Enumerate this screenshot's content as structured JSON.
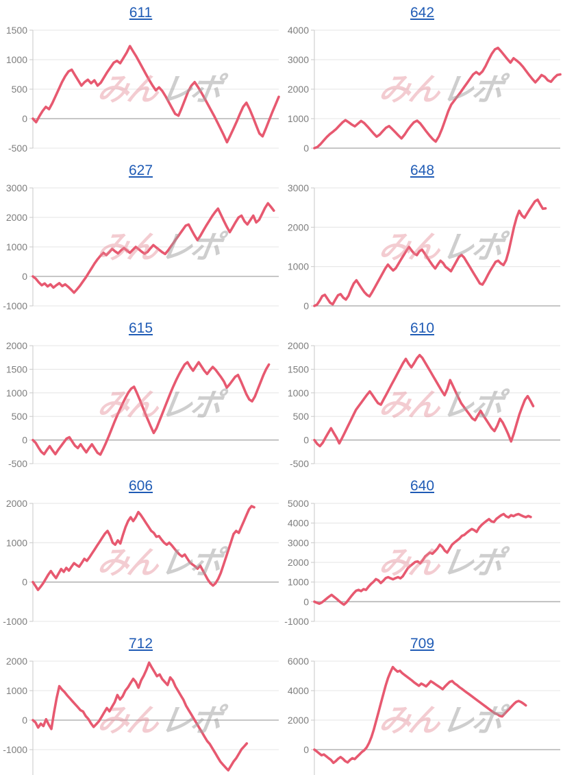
{
  "watermark": {
    "left": "みん",
    "right": "レポ"
  },
  "colors": {
    "line": "#e75970",
    "title_link": "#1f5bb5",
    "grid": "#e6e6e6",
    "zero_line": "#b3b3b3",
    "axis": "#cccccc",
    "tick_label": "#7d7d7d",
    "watermark_pink": "#e48894",
    "watermark_gray": "#9e9e9e",
    "background": "#ffffff"
  },
  "chart_data": [
    {
      "type": "line",
      "title": "611",
      "ylim": [
        -500,
        1500
      ],
      "yticks": [
        1500,
        1000,
        500,
        0,
        -500
      ],
      "x_extent": 1.0,
      "values": [
        0,
        -60,
        40,
        130,
        200,
        160,
        260,
        380,
        500,
        620,
        720,
        800,
        830,
        740,
        650,
        560,
        620,
        660,
        600,
        650,
        560,
        610,
        700,
        790,
        870,
        950,
        980,
        940,
        1030,
        1120,
        1230,
        1140,
        1050,
        950,
        850,
        750,
        650,
        560,
        480,
        530,
        470,
        380,
        280,
        180,
        80,
        50,
        180,
        320,
        460,
        560,
        620,
        540,
        450,
        350,
        250,
        150,
        50,
        -60,
        -170,
        -280,
        -400,
        -290,
        -170,
        -50,
        80,
        200,
        270,
        160,
        30,
        -110,
        -250,
        -300,
        -170,
        -30,
        110,
        240,
        370
      ]
    },
    {
      "type": "line",
      "title": "642",
      "ylim": [
        0,
        4000
      ],
      "yticks": [
        4000,
        3000,
        2000,
        1000,
        0
      ],
      "x_extent": 1.0,
      "values": [
        0,
        40,
        140,
        260,
        380,
        480,
        560,
        650,
        760,
        870,
        950,
        880,
        800,
        740,
        830,
        920,
        850,
        740,
        620,
        500,
        390,
        460,
        580,
        690,
        750,
        650,
        540,
        430,
        330,
        460,
        620,
        760,
        880,
        930,
        840,
        700,
        560,
        430,
        310,
        220,
        400,
        650,
        950,
        1250,
        1480,
        1620,
        1760,
        1900,
        2050,
        2200,
        2350,
        2500,
        2580,
        2500,
        2600,
        2780,
        3000,
        3200,
        3350,
        3400,
        3280,
        3150,
        3020,
        2900,
        3050,
        2970,
        2880,
        2760,
        2620,
        2480,
        2350,
        2230,
        2350,
        2480,
        2420,
        2300,
        2250,
        2380,
        2480,
        2500
      ]
    },
    {
      "type": "line",
      "title": "627",
      "ylim": [
        -1000,
        3000
      ],
      "yticks": [
        3000,
        2000,
        1000,
        0,
        -1000
      ],
      "x_extent": 0.98,
      "values": [
        0,
        -80,
        -200,
        -300,
        -240,
        -340,
        -270,
        -380,
        -300,
        -230,
        -330,
        -270,
        -350,
        -450,
        -550,
        -440,
        -320,
        -180,
        -40,
        120,
        280,
        440,
        580,
        700,
        800,
        720,
        820,
        930,
        850,
        780,
        880,
        960,
        880,
        800,
        900,
        1000,
        920,
        840,
        770,
        830,
        950,
        1060,
        980,
        900,
        820,
        760,
        880,
        1020,
        1160,
        1300,
        1440,
        1580,
        1720,
        1760,
        1570,
        1390,
        1230,
        1380,
        1550,
        1720,
        1880,
        2040,
        2180,
        2300,
        2090,
        1880,
        1680,
        1500,
        1670,
        1840,
        2000,
        2060,
        1870,
        1760,
        1910,
        2060,
        1830,
        1920,
        2120,
        2320,
        2480,
        2360,
        2230
      ]
    },
    {
      "type": "line",
      "title": "648",
      "ylim": [
        0,
        3000
      ],
      "yticks": [
        3000,
        2000,
        1000,
        0
      ],
      "x_extent": 0.94,
      "values": [
        0,
        30,
        130,
        250,
        280,
        180,
        80,
        40,
        160,
        270,
        300,
        210,
        160,
        260,
        430,
        570,
        650,
        550,
        450,
        350,
        280,
        240,
        350,
        470,
        590,
        710,
        830,
        950,
        1050,
        970,
        900,
        960,
        1070,
        1180,
        1290,
        1400,
        1500,
        1410,
        1330,
        1290,
        1390,
        1430,
        1330,
        1230,
        1130,
        1030,
        950,
        1050,
        1150,
        1090,
        990,
        940,
        880,
        1000,
        1120,
        1240,
        1300,
        1230,
        1120,
        1010,
        900,
        790,
        680,
        570,
        540,
        650,
        780,
        900,
        1010,
        1120,
        1150,
        1080,
        1040,
        1160,
        1400,
        1700,
        2000,
        2250,
        2420,
        2300,
        2240,
        2350,
        2460,
        2560,
        2660,
        2700,
        2580,
        2470,
        2480
      ]
    },
    {
      "type": "line",
      "title": "615",
      "ylim": [
        -500,
        2000
      ],
      "yticks": [
        2000,
        1500,
        1000,
        500,
        0,
        -500
      ],
      "x_extent": 0.96,
      "values": [
        0,
        -60,
        -160,
        -250,
        -300,
        -210,
        -130,
        -220,
        -300,
        -210,
        -130,
        -50,
        30,
        60,
        -30,
        -120,
        -170,
        -90,
        -180,
        -260,
        -170,
        -90,
        -180,
        -270,
        -310,
        -190,
        -60,
        80,
        230,
        380,
        520,
        650,
        780,
        900,
        1010,
        1090,
        1130,
        1000,
        860,
        710,
        560,
        420,
        280,
        150,
        250,
        400,
        550,
        700,
        850,
        1000,
        1140,
        1270,
        1390,
        1500,
        1600,
        1650,
        1550,
        1470,
        1560,
        1650,
        1560,
        1470,
        1400,
        1480,
        1550,
        1490,
        1410,
        1330,
        1240,
        1110,
        1180,
        1260,
        1340,
        1380,
        1250,
        1110,
        970,
        860,
        820,
        920,
        1070,
        1220,
        1370,
        1500,
        1600
      ]
    },
    {
      "type": "line",
      "title": "610",
      "ylim": [
        -500,
        2000
      ],
      "yticks": [
        2000,
        1500,
        1000,
        500,
        0,
        -500
      ],
      "x_extent": 0.89,
      "values": [
        0,
        -80,
        -130,
        -60,
        50,
        150,
        250,
        150,
        50,
        -70,
        40,
        160,
        280,
        400,
        520,
        640,
        720,
        800,
        880,
        960,
        1030,
        950,
        860,
        780,
        750,
        860,
        970,
        1080,
        1190,
        1300,
        1410,
        1520,
        1630,
        1720,
        1620,
        1540,
        1630,
        1730,
        1800,
        1740,
        1640,
        1540,
        1440,
        1340,
        1240,
        1140,
        1040,
        950,
        1080,
        1270,
        1150,
        1020,
        900,
        780,
        700,
        620,
        540,
        460,
        420,
        520,
        620,
        520,
        430,
        340,
        250,
        190,
        300,
        450,
        370,
        250,
        120,
        -30,
        140,
        340,
        540,
        700,
        850,
        930,
        830,
        720
      ]
    },
    {
      "type": "line",
      "title": "606",
      "ylim": [
        -1000,
        2000
      ],
      "yticks": [
        2000,
        1000,
        0,
        -1000
      ],
      "x_extent": 0.9,
      "values": [
        0,
        -100,
        -200,
        -120,
        -30,
        80,
        190,
        280,
        180,
        100,
        220,
        330,
        260,
        360,
        290,
        390,
        480,
        430,
        390,
        490,
        590,
        540,
        630,
        730,
        830,
        930,
        1030,
        1130,
        1230,
        1300,
        1180,
        1000,
        950,
        1060,
        980,
        1200,
        1400,
        1550,
        1650,
        1550,
        1650,
        1780,
        1700,
        1600,
        1500,
        1400,
        1300,
        1250,
        1150,
        1170,
        1080,
        1000,
        950,
        1000,
        930,
        850,
        770,
        700,
        650,
        700,
        600,
        500,
        450,
        400,
        340,
        420,
        300,
        180,
        60,
        -30,
        -90,
        -30,
        80,
        230,
        420,
        620,
        820,
        1020,
        1220,
        1300,
        1250,
        1400,
        1550,
        1700,
        1850,
        1930,
        1900
      ]
    },
    {
      "type": "line",
      "title": "640",
      "ylim": [
        -1000,
        5000
      ],
      "yticks": [
        5000,
        4000,
        3000,
        2000,
        1000,
        0,
        -1000
      ],
      "x_extent": 0.88,
      "values": [
        0,
        -50,
        -100,
        -40,
        60,
        160,
        260,
        350,
        250,
        150,
        40,
        -60,
        -150,
        -40,
        120,
        280,
        430,
        560,
        600,
        540,
        640,
        600,
        760,
        900,
        1010,
        1150,
        1090,
        950,
        1060,
        1200,
        1250,
        1190,
        1140,
        1200,
        1250,
        1190,
        1300,
        1500,
        1700,
        1820,
        1920,
        2020,
        2050,
        1950,
        2100,
        2300,
        2400,
        2500,
        2440,
        2560,
        2700,
        2900,
        2790,
        2600,
        2500,
        2700,
        2900,
        3010,
        3110,
        3210,
        3350,
        3400,
        3510,
        3610,
        3700,
        3640,
        3550,
        3760,
        3900,
        4010,
        4110,
        4200,
        4090,
        4050,
        4210,
        4310,
        4400,
        4460,
        4340,
        4290,
        4400,
        4350,
        4420,
        4460,
        4400,
        4340,
        4300,
        4360,
        4310
      ]
    },
    {
      "type": "line",
      "title": "712",
      "ylim": [
        -2000,
        2000
      ],
      "yticks": [
        2000,
        1000,
        0,
        -1000,
        -2000
      ],
      "x_extent": 0.87,
      "values": [
        0,
        -80,
        -250,
        -120,
        -200,
        30,
        -150,
        -300,
        250,
        750,
        1150,
        1040,
        950,
        840,
        740,
        640,
        540,
        440,
        340,
        290,
        140,
        40,
        -110,
        -230,
        -140,
        -40,
        110,
        260,
        410,
        300,
        460,
        610,
        850,
        700,
        810,
        1000,
        1110,
        1260,
        1400,
        1290,
        1100,
        1350,
        1510,
        1710,
        1950,
        1790,
        1640,
        1490,
        1550,
        1390,
        1290,
        1190,
        1450,
        1340,
        1140,
        990,
        840,
        690,
        490,
        340,
        190,
        40,
        -110,
        -260,
        -410,
        -560,
        -710,
        -810,
        -960,
        -1110,
        -1260,
        -1410,
        -1510,
        -1610,
        -1700,
        -1550,
        -1400,
        -1290,
        -1140,
        -990,
        -890,
        -790
      ]
    },
    {
      "type": "line",
      "title": "709",
      "ylim": [
        -2000,
        6000
      ],
      "yticks": [
        6000,
        4000,
        2000,
        0,
        -2000
      ],
      "x_extent": 0.86,
      "values": [
        0,
        -120,
        -250,
        -380,
        -330,
        -450,
        -580,
        -700,
        -900,
        -780,
        -620,
        -500,
        -620,
        -780,
        -870,
        -700,
        -580,
        -640,
        -480,
        -320,
        -160,
        -40,
        150,
        450,
        850,
        1350,
        1950,
        2550,
        3150,
        3750,
        4350,
        4850,
        5250,
        5600,
        5430,
        5290,
        5350,
        5180,
        5060,
        4940,
        4820,
        4700,
        4560,
        4440,
        4330,
        4480,
        4390,
        4290,
        4450,
        4640,
        4540,
        4430,
        4320,
        4210,
        4100,
        4290,
        4450,
        4600,
        4650,
        4490,
        4380,
        4240,
        4130,
        4010,
        3890,
        3770,
        3650,
        3530,
        3410,
        3290,
        3170,
        3050,
        2930,
        2810,
        2690,
        2570,
        2460,
        2400,
        2290,
        2250,
        2420,
        2590,
        2760,
        2930,
        3100,
        3240,
        3300,
        3230,
        3120,
        3000
      ]
    }
  ]
}
